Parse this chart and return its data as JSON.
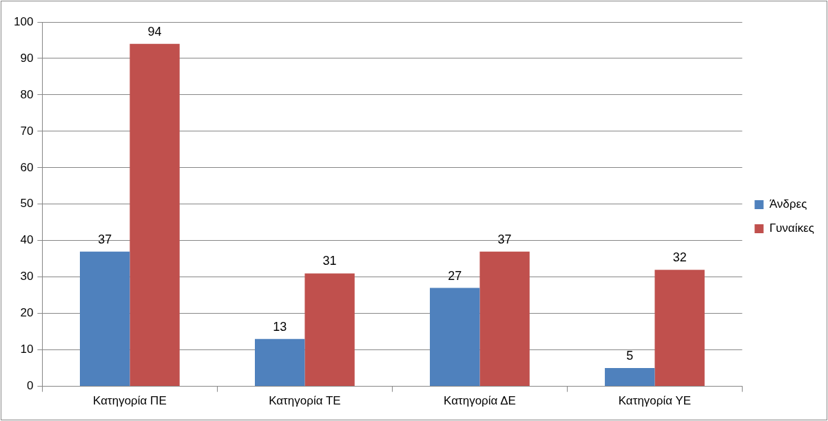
{
  "chart_data": {
    "type": "bar",
    "categories": [
      "Κατηγορία ΠΕ",
      "Κατηγορία ΤΕ",
      "Κατηγορία ΔΕ",
      "Κατηγορία ΥΕ"
    ],
    "series": [
      {
        "name": "Άνδρες",
        "color": "#4f81bd",
        "values": [
          37,
          13,
          27,
          5
        ]
      },
      {
        "name": "Γυναίκες",
        "color": "#c0504d",
        "values": [
          94,
          31,
          37,
          32
        ]
      }
    ],
    "ylim": [
      0,
      100
    ],
    "yticks": [
      0,
      10,
      20,
      30,
      40,
      50,
      60,
      70,
      80,
      90,
      100
    ],
    "grid": "y",
    "legend": "right",
    "data_labels": true
  }
}
